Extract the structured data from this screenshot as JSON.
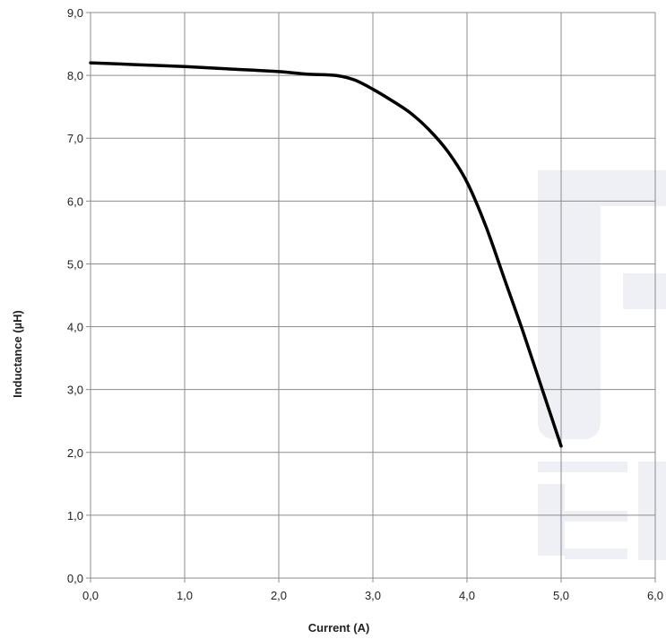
{
  "chart_data": {
    "type": "line",
    "xlabel": "Current (A)",
    "ylabel": "Inductance (µH)",
    "xlim": [
      0,
      6
    ],
    "ylim": [
      0,
      9
    ],
    "grid": true,
    "x_ticks": [
      "0,0",
      "1,0",
      "2,0",
      "3,0",
      "4,0",
      "5,0",
      "6,0"
    ],
    "y_ticks": [
      "0,0",
      "1,0",
      "2,0",
      "3,0",
      "4,0",
      "5,0",
      "6,0",
      "7,0",
      "8,0",
      "9,0"
    ],
    "series": [
      {
        "x": [
          0.0,
          0.5,
          1.0,
          1.5,
          2.0,
          2.3,
          2.6,
          2.8,
          3.0,
          3.2,
          3.4,
          3.6,
          3.8,
          4.0,
          4.2,
          4.4,
          4.6,
          4.8,
          5.0
        ],
        "y": [
          8.2,
          8.17,
          8.14,
          8.1,
          8.06,
          8.02,
          8.0,
          7.93,
          7.78,
          7.6,
          7.4,
          7.13,
          6.78,
          6.3,
          5.6,
          4.75,
          3.9,
          3.0,
          2.1
        ],
        "color": "#000000"
      }
    ]
  }
}
